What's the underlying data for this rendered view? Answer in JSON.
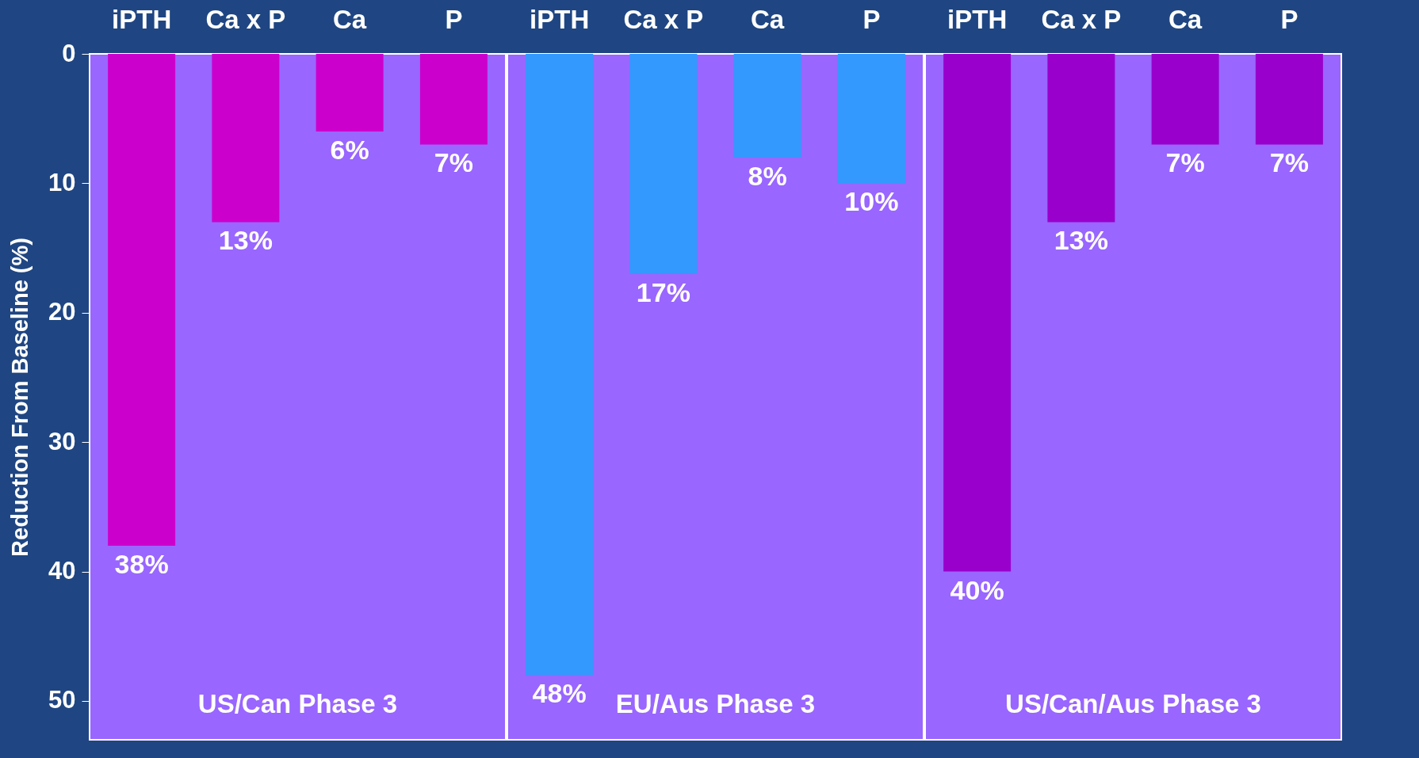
{
  "chart_data": [
    {
      "type": "bar",
      "title": "US/Can Phase 3",
      "ylabel": "Reduction From Baseline (%)",
      "categories": [
        "iPTH",
        "Ca x P",
        "Ca",
        "P"
      ],
      "values": [
        38,
        13,
        6,
        7
      ],
      "value_labels": [
        "38%",
        "13%",
        "6%",
        "7%"
      ],
      "color": "#cc00cc",
      "ylim": [
        53,
        0
      ],
      "yticks": [
        0,
        10,
        20,
        30,
        40,
        50
      ]
    },
    {
      "type": "bar",
      "title": "EU/Aus Phase 3",
      "categories": [
        "iPTH",
        "Ca x P",
        "Ca",
        "P"
      ],
      "values": [
        48,
        17,
        8,
        10
      ],
      "value_labels": [
        "48%",
        "17%",
        "8%",
        "10%"
      ],
      "color": "#3399ff",
      "ylim": [
        53,
        0
      ],
      "yticks": [
        0,
        10,
        20,
        30,
        40,
        50
      ],
      "tick_labels": "x"
    },
    {
      "type": "bar",
      "title": "US/Can/Aus Phase 3",
      "categories": [
        "iPTH",
        "Ca x P",
        "Ca",
        "P"
      ],
      "values": [
        40,
        13,
        7,
        7
      ],
      "value_labels": [
        "40%",
        "13%",
        "7%",
        "7%"
      ],
      "color": "#9900cc",
      "ylim": [
        53,
        0
      ],
      "yticks": [
        0,
        10,
        20,
        30,
        40,
        50
      ],
      "tick_labels": "x"
    }
  ]
}
